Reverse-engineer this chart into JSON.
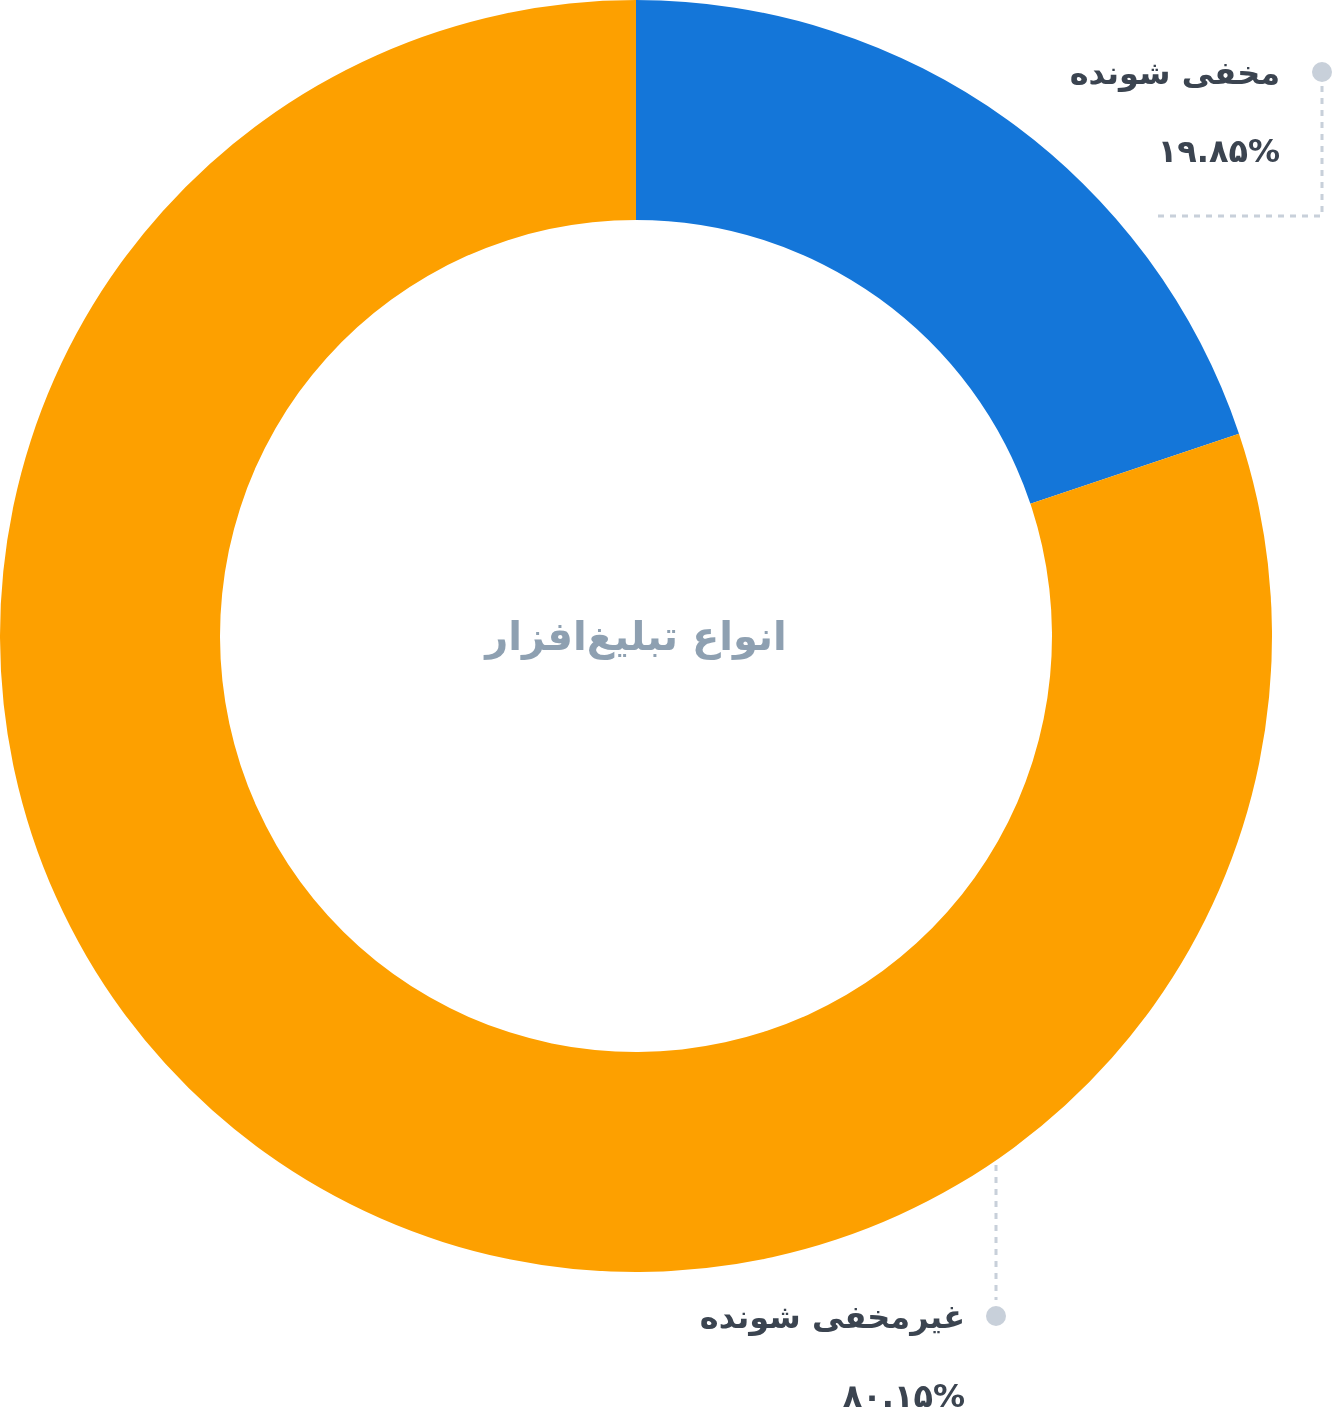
{
  "chart_data": {
    "type": "donut",
    "title": "انواع تبلیغ‌افزار",
    "categories": [
      "مخفی شونده",
      "غیرمخفی شونده"
    ],
    "values": [
      19.85,
      80.15
    ],
    "colors": [
      "#1476d9",
      "#fda000"
    ],
    "value_labels": [
      "۱۹.۸۵%",
      "۸۰.۱۵%"
    ],
    "legend": false
  }
}
